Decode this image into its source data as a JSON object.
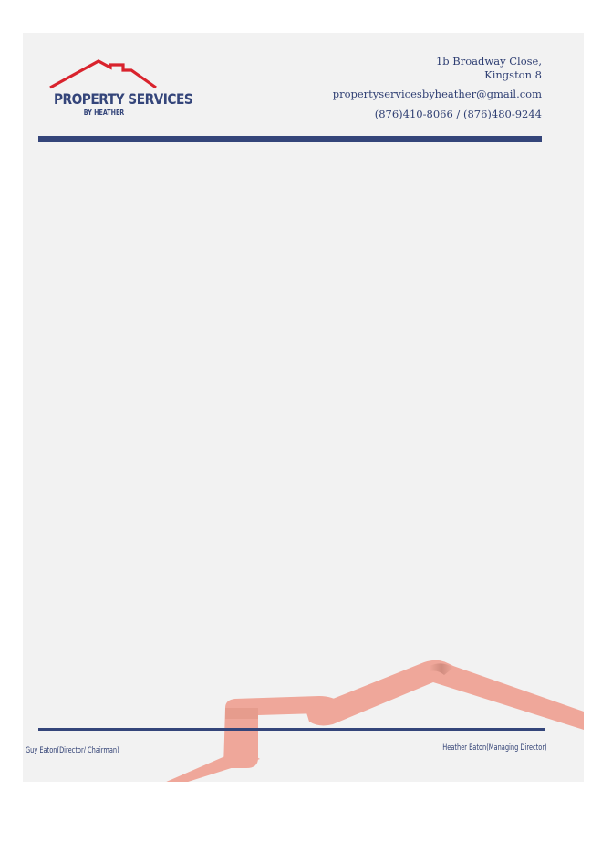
{
  "logo": {
    "title": "PROPERTY SERVICES",
    "subtitle": "BY HEATHER",
    "roof_icon": "roof-icon"
  },
  "contact": {
    "address_line1": "1b Broadway Close,",
    "address_line2": "Kingston 8",
    "email": "propertyservicesbyheather@gmail.com",
    "phone": "(876)410-8066 / (876)480-9244"
  },
  "footer": {
    "left_signature": "Guy Eaton(Director/ Chairman)",
    "right_signature": "Heather Eaton(Managing Director)"
  },
  "colors": {
    "navy": "#34457a",
    "roof_red": "#d9232d",
    "ribbon": "#efa79a",
    "page": "#f2f2f2"
  }
}
